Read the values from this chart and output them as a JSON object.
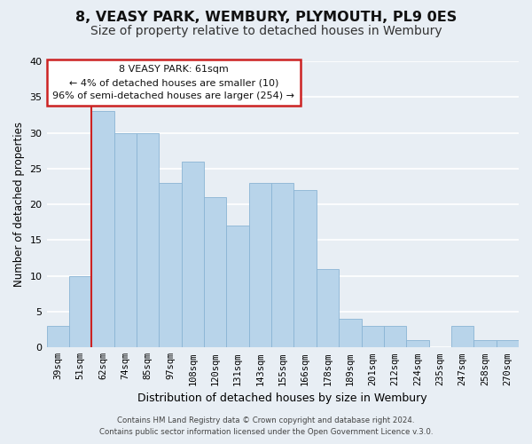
{
  "title": "8, VEASY PARK, WEMBURY, PLYMOUTH, PL9 0ES",
  "subtitle": "Size of property relative to detached houses in Wembury",
  "xlabel": "Distribution of detached houses by size in Wembury",
  "ylabel": "Number of detached properties",
  "categories": [
    "39sqm",
    "51sqm",
    "62sqm",
    "74sqm",
    "85sqm",
    "97sqm",
    "108sqm",
    "120sqm",
    "131sqm",
    "143sqm",
    "155sqm",
    "166sqm",
    "178sqm",
    "189sqm",
    "201sqm",
    "212sqm",
    "224sqm",
    "235sqm",
    "247sqm",
    "258sqm",
    "270sqm"
  ],
  "values": [
    3,
    10,
    33,
    30,
    30,
    23,
    26,
    21,
    17,
    23,
    23,
    22,
    11,
    4,
    3,
    3,
    1,
    0,
    3,
    1,
    1
  ],
  "bar_color": "#b8d4ea",
  "bar_edgecolor": "#8ab4d4",
  "highlight_bar_index": 2,
  "red_line_index": 2,
  "ylim": [
    0,
    40
  ],
  "yticks": [
    0,
    5,
    10,
    15,
    20,
    25,
    30,
    35,
    40
  ],
  "annotation_title": "8 VEASY PARK: 61sqm",
  "annotation_line1": "← 4% of detached houses are smaller (10)",
  "annotation_line2": "96% of semi-detached houses are larger (254) →",
  "annotation_box_facecolor": "#ffffff",
  "annotation_box_edgecolor": "#cc2222",
  "footer_line1": "Contains HM Land Registry data © Crown copyright and database right 2024.",
  "footer_line2": "Contains public sector information licensed under the Open Government Licence v.3.0.",
  "background_color": "#e8eef4",
  "grid_color": "#ffffff",
  "title_fontsize": 11.5,
  "subtitle_fontsize": 10,
  "tick_fontsize": 7.5,
  "ylabel_fontsize": 8.5,
  "xlabel_fontsize": 9
}
